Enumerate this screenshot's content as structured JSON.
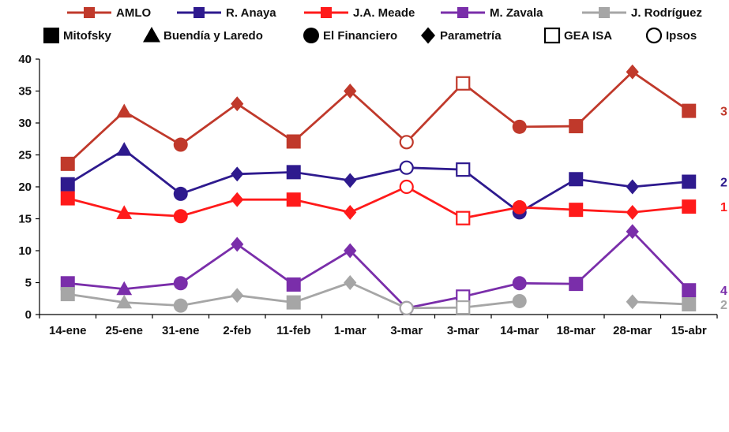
{
  "chart_data": {
    "type": "line",
    "title": "",
    "xlabel": "",
    "ylabel": "",
    "ylim": [
      0,
      40
    ],
    "yticks": [
      0,
      5,
      10,
      15,
      20,
      25,
      30,
      35,
      40
    ],
    "grid": false,
    "categories": [
      "14-ene",
      "25-ene",
      "31-ene",
      "2-feb",
      "11-feb",
      "1-mar",
      "3-mar",
      "3-mar",
      "14-mar",
      "18-mar",
      "28-mar",
      "15-abr"
    ],
    "pollsters": [
      {
        "name": "Mitofsky",
        "marker": "square"
      },
      {
        "name": "Buendía y Laredo",
        "marker": "triangle"
      },
      {
        "name": "El Financiero",
        "marker": "circle"
      },
      {
        "name": "Parametría",
        "marker": "diamond"
      },
      {
        "name": "GEA  ISA",
        "marker": "open-square"
      },
      {
        "name": "Ipsos",
        "marker": "open-circle"
      }
    ],
    "point_markers": [
      "square",
      "triangle",
      "circle",
      "diamond",
      "square",
      "diamond",
      "open-circle",
      "open-square",
      "circle",
      "square",
      "diamond",
      "square"
    ],
    "series": [
      {
        "name": "AMLO",
        "color": "#c0392b",
        "values": [
          23.6,
          31.8,
          26.6,
          33.0,
          27.1,
          35.0,
          27.0,
          36.2,
          29.4,
          29.5,
          38.0,
          31.9
        ],
        "end_label": "3"
      },
      {
        "name": "R. Anaya",
        "color": "#2e1a8e",
        "values": [
          20.4,
          25.8,
          18.9,
          22.0,
          22.3,
          21.0,
          23.0,
          22.7,
          16.0,
          21.2,
          20.0,
          20.8
        ],
        "end_label": "2"
      },
      {
        "name": "J.A. Meade",
        "color": "#ff1a1a",
        "values": [
          18.2,
          15.9,
          15.4,
          18.0,
          18.0,
          16.0,
          20.0,
          15.1,
          16.8,
          16.4,
          16.0,
          16.9
        ],
        "end_label": "1"
      },
      {
        "name": "M. Zavala",
        "color": "#7a2eaa",
        "values": [
          4.9,
          4.0,
          4.9,
          11.0,
          4.7,
          10.0,
          1.0,
          2.8,
          4.9,
          4.8,
          13.0,
          3.8
        ],
        "end_label": "4"
      },
      {
        "name": "J. Rodríguez",
        "color": "#a6a6a6",
        "values": [
          3.2,
          1.9,
          1.4,
          3.0,
          1.9,
          5.0,
          1.0,
          1.1,
          2.1,
          null,
          2.0,
          1.6
        ],
        "end_label": "2"
      }
    ],
    "legend_position": "top"
  }
}
